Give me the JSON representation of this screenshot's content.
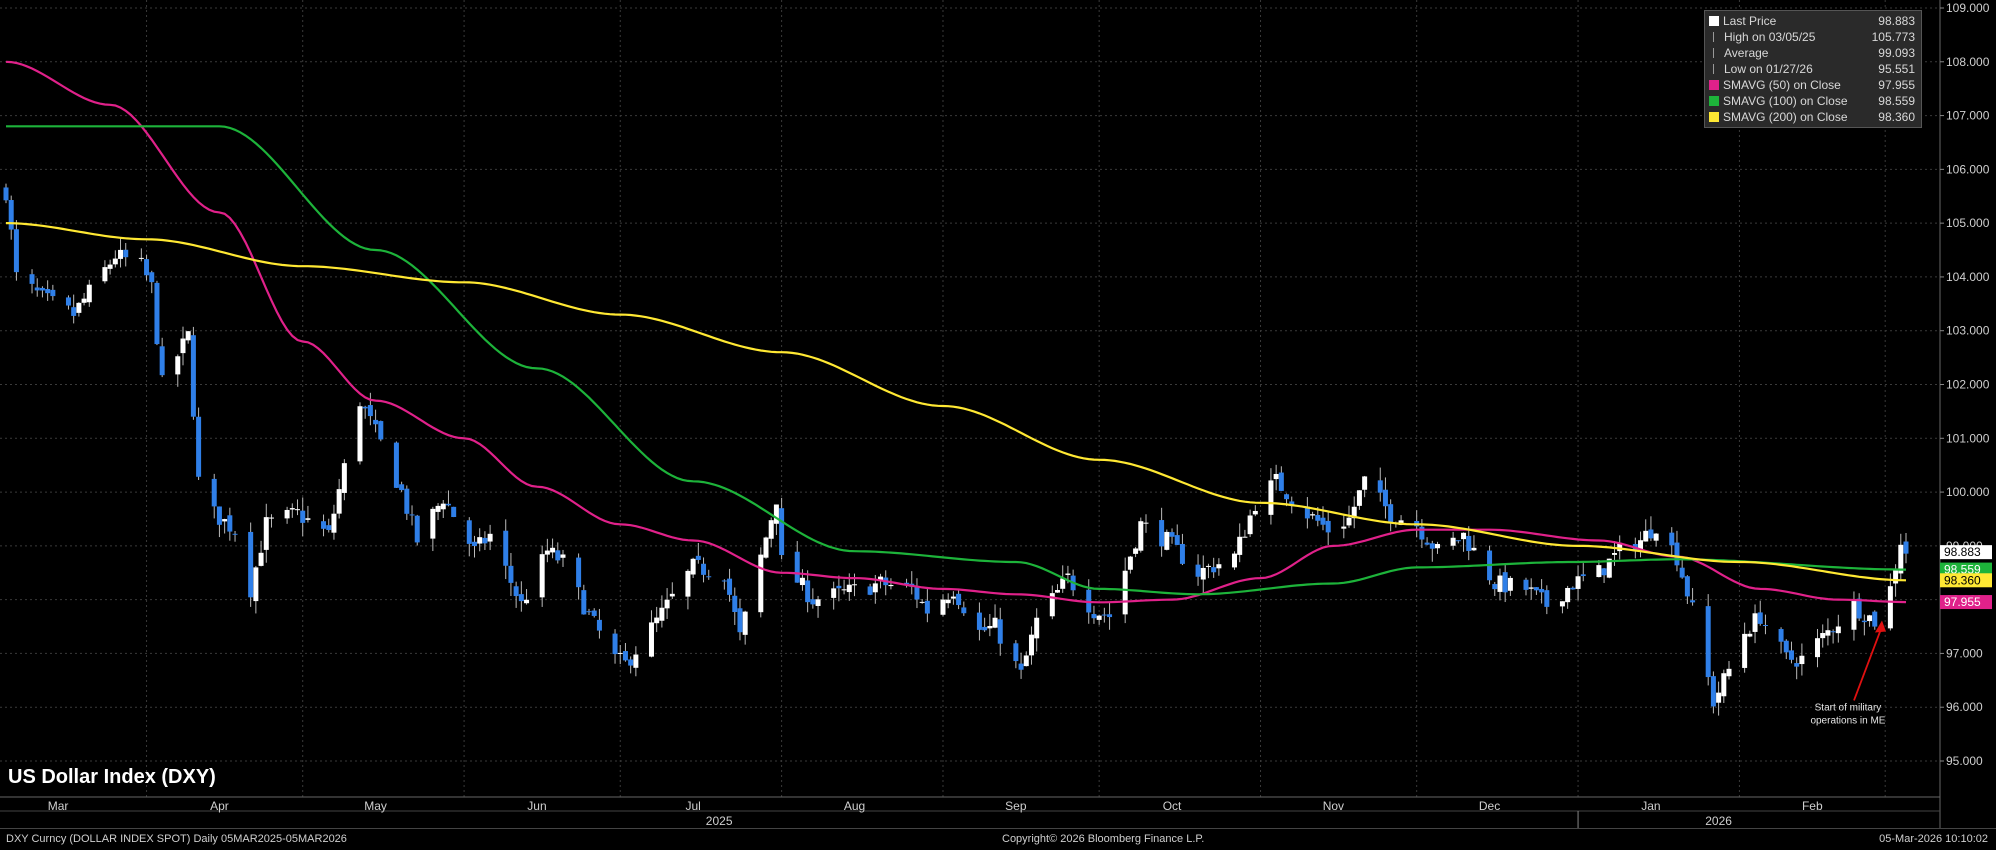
{
  "chart_data": {
    "type": "candlestick",
    "title": "US Dollar Index (DXY)",
    "y_ticks": [
      "95.000",
      "96.000",
      "97.000",
      "98.000",
      "99.000",
      "100.000",
      "101.000",
      "102.000",
      "103.000",
      "104.000",
      "105.000",
      "106.000",
      "107.000",
      "108.000",
      "109.000"
    ],
    "ylim": [
      94.5,
      109.1
    ],
    "x_range": [
      "2025-03-05",
      "2026-03-05"
    ],
    "month_labels": [
      {
        "label": "Mar",
        "date": "2025-03-15"
      },
      {
        "label": "Apr",
        "date": "2025-04-15"
      },
      {
        "label": "May",
        "date": "2025-05-15"
      },
      {
        "label": "Jun",
        "date": "2025-06-15"
      },
      {
        "label": "Jul",
        "date": "2025-07-15"
      },
      {
        "label": "Aug",
        "date": "2025-08-15"
      },
      {
        "label": "Sep",
        "date": "2025-09-15"
      },
      {
        "label": "Oct",
        "date": "2025-10-15"
      },
      {
        "label": "Nov",
        "date": "2025-11-15"
      },
      {
        "label": "Dec",
        "date": "2025-12-15"
      },
      {
        "label": "Jan",
        "date": "2026-01-15"
      },
      {
        "label": "Feb",
        "date": "2026-02-15"
      }
    ],
    "year_labels": [
      {
        "label": "2025",
        "date": "2025-07-20"
      },
      {
        "label": "2026",
        "date": "2026-01-28"
      }
    ],
    "year_divider": "2026-01-01",
    "price_anchors": [
      [
        "2025-03-05",
        105.6
      ],
      [
        "2025-03-07",
        104.0
      ],
      [
        "2025-03-12",
        103.6
      ],
      [
        "2025-03-18",
        103.3
      ],
      [
        "2025-03-26",
        104.4
      ],
      [
        "2025-03-31",
        104.2
      ],
      [
        "2025-04-02",
        103.8
      ],
      [
        "2025-04-04",
        102.0
      ],
      [
        "2025-04-09",
        102.9
      ],
      [
        "2025-04-11",
        100.2
      ],
      [
        "2025-04-14",
        99.6
      ],
      [
        "2025-04-18",
        99.3
      ],
      [
        "2025-04-21",
        98.2
      ],
      [
        "2025-04-24",
        99.4
      ],
      [
        "2025-04-30",
        99.6
      ],
      [
        "2025-05-06",
        99.2
      ],
      [
        "2025-05-12",
        101.7
      ],
      [
        "2025-05-16",
        100.9
      ],
      [
        "2025-05-20",
        100.0
      ],
      [
        "2025-05-23",
        99.1
      ],
      [
        "2025-05-28",
        99.9
      ],
      [
        "2025-06-03",
        98.9
      ],
      [
        "2025-06-06",
        99.2
      ],
      [
        "2025-06-12",
        97.9
      ],
      [
        "2025-06-17",
        98.9
      ],
      [
        "2025-06-20",
        98.7
      ],
      [
        "2025-06-25",
        97.7
      ],
      [
        "2025-06-30",
        96.9
      ],
      [
        "2025-07-02",
        96.8
      ],
      [
        "2025-07-08",
        97.6
      ],
      [
        "2025-07-15",
        98.6
      ],
      [
        "2025-07-21",
        98.5
      ],
      [
        "2025-07-24",
        97.3
      ],
      [
        "2025-07-31",
        99.9
      ],
      [
        "2025-08-01",
        98.7
      ],
      [
        "2025-08-07",
        98.0
      ],
      [
        "2025-08-12",
        98.1
      ],
      [
        "2025-08-20",
        98.3
      ],
      [
        "2025-08-26",
        98.2
      ],
      [
        "2025-08-29",
        97.8
      ],
      [
        "2025-09-03",
        98.2
      ],
      [
        "2025-09-08",
        97.4
      ],
      [
        "2025-09-11",
        97.5
      ],
      [
        "2025-09-16",
        96.6
      ],
      [
        "2025-09-19",
        97.6
      ],
      [
        "2025-09-25",
        98.4
      ],
      [
        "2025-09-30",
        97.8
      ],
      [
        "2025-10-03",
        97.7
      ],
      [
        "2025-10-09",
        99.4
      ],
      [
        "2025-10-14",
        99.1
      ],
      [
        "2025-10-20",
        98.5
      ],
      [
        "2025-10-27",
        98.8
      ],
      [
        "2025-10-31",
        99.8
      ],
      [
        "2025-11-04",
        100.2
      ],
      [
        "2025-11-10",
        99.6
      ],
      [
        "2025-11-14",
        99.3
      ],
      [
        "2025-11-18",
        99.5
      ],
      [
        "2025-11-21",
        100.2
      ],
      [
        "2025-11-26",
        99.6
      ],
      [
        "2025-12-01",
        99.4
      ],
      [
        "2025-12-05",
        98.9
      ],
      [
        "2025-12-10",
        99.2
      ],
      [
        "2025-12-16",
        98.3
      ],
      [
        "2025-12-22",
        98.2
      ],
      [
        "2025-12-26",
        97.9
      ],
      [
        "2025-12-31",
        98.3
      ],
      [
        "2026-01-05",
        98.5
      ],
      [
        "2026-01-09",
        98.9
      ],
      [
        "2026-01-13",
        99.1
      ],
      [
        "2026-01-16",
        99.4
      ],
      [
        "2026-01-20",
        98.8
      ],
      [
        "2026-01-23",
        97.8
      ],
      [
        "2026-01-27",
        96.1
      ],
      [
        "2026-01-30",
        96.7
      ],
      [
        "2026-02-02",
        97.4
      ],
      [
        "2026-02-05",
        97.7
      ],
      [
        "2026-02-10",
        96.9
      ],
      [
        "2026-02-13",
        96.9
      ],
      [
        "2026-02-18",
        97.4
      ],
      [
        "2026-02-23",
        97.9
      ],
      [
        "2026-02-27",
        97.6
      ],
      [
        "2026-03-02",
        98.2
      ],
      [
        "2026-03-04",
        99.1
      ],
      [
        "2026-03-05",
        98.9
      ]
    ],
    "series": [
      {
        "name": "SMAVG (50)  on Close",
        "color": "#e0218a",
        "points": [
          [
            "2025-03-05",
            108.0
          ],
          [
            "2025-03-25",
            107.2
          ],
          [
            "2025-04-15",
            105.2
          ],
          [
            "2025-05-01",
            102.8
          ],
          [
            "2025-05-15",
            101.7
          ],
          [
            "2025-06-01",
            101.0
          ],
          [
            "2025-06-15",
            100.1
          ],
          [
            "2025-07-01",
            99.4
          ],
          [
            "2025-07-15",
            99.1
          ],
          [
            "2025-08-01",
            98.5
          ],
          [
            "2025-08-15",
            98.4
          ],
          [
            "2025-09-01",
            98.2
          ],
          [
            "2025-09-15",
            98.1
          ],
          [
            "2025-10-01",
            97.95
          ],
          [
            "2025-10-15",
            98.0
          ],
          [
            "2025-11-01",
            98.4
          ],
          [
            "2025-11-15",
            99.0
          ],
          [
            "2025-12-01",
            99.3
          ],
          [
            "2025-12-15",
            99.3
          ],
          [
            "2026-01-05",
            99.1
          ],
          [
            "2026-01-20",
            98.8
          ],
          [
            "2026-02-05",
            98.2
          ],
          [
            "2026-02-20",
            98.0
          ],
          [
            "2026-03-05",
            97.955
          ]
        ]
      },
      {
        "name": "SMAVG (100)  on Close",
        "color": "#1db33a",
        "points": [
          [
            "2025-03-05",
            106.8
          ],
          [
            "2025-04-15",
            106.8
          ],
          [
            "2025-05-15",
            104.5
          ],
          [
            "2025-06-15",
            102.3
          ],
          [
            "2025-07-15",
            100.2
          ],
          [
            "2025-08-15",
            98.9
          ],
          [
            "2025-09-15",
            98.7
          ],
          [
            "2025-10-01",
            98.2
          ],
          [
            "2025-10-20",
            98.1
          ],
          [
            "2025-11-15",
            98.3
          ],
          [
            "2025-12-01",
            98.6
          ],
          [
            "2025-12-31",
            98.7
          ],
          [
            "2026-01-20",
            98.75
          ],
          [
            "2026-03-05",
            98.559
          ]
        ]
      },
      {
        "name": "SMAVG (200)  on Close",
        "color": "#ffe833",
        "points": [
          [
            "2025-03-05",
            105.0
          ],
          [
            "2025-04-01",
            104.7
          ],
          [
            "2025-05-01",
            104.2
          ],
          [
            "2025-06-01",
            103.9
          ],
          [
            "2025-07-01",
            103.3
          ],
          [
            "2025-08-01",
            102.6
          ],
          [
            "2025-09-01",
            101.6
          ],
          [
            "2025-10-01",
            100.6
          ],
          [
            "2025-11-01",
            99.8
          ],
          [
            "2025-12-01",
            99.4
          ],
          [
            "2026-01-01",
            99.0
          ],
          [
            "2026-02-01",
            98.7
          ],
          [
            "2026-03-05",
            98.36
          ]
        ]
      }
    ],
    "last_price": {
      "value": "98.883",
      "num": 98.883,
      "color": "#ffffff"
    },
    "axis_tags": [
      {
        "text": "98.883",
        "num": 98.883,
        "bg": "#ffffff",
        "fg": "#000000"
      },
      {
        "text": "98.559",
        "num": 98.559,
        "bg": "#1db33a",
        "fg": "#ffffff"
      },
      {
        "text": "98.360",
        "num": 98.36,
        "bg": "#ffe833",
        "fg": "#000000"
      },
      {
        "text": "97.955",
        "num": 97.955,
        "bg": "#e0218a",
        "fg": "#ffffff"
      }
    ],
    "annotation": {
      "lines": [
        "Start of military",
        "operations in ME"
      ],
      "date": "2026-02-28",
      "target_value": 97.65,
      "text_value": 96.2,
      "color": "#e01010"
    }
  },
  "legend": [
    {
      "name": "Last Price",
      "value": "98.883",
      "color": "#ffffff",
      "icon": "square-swatch"
    },
    {
      "name": "High on 03/05/25",
      "value": "105.773",
      "color": "#aaaaaa",
      "icon": "high-marker"
    },
    {
      "name": "Average",
      "value": "99.093",
      "color": "#aaaaaa",
      "icon": "average-marker"
    },
    {
      "name": "Low on 01/27/26",
      "value": "95.551",
      "color": "#aaaaaa",
      "icon": "low-marker"
    },
    {
      "name": "SMAVG (50)  on Close",
      "value": "97.955",
      "color": "#e0218a",
      "icon": "square-swatch"
    },
    {
      "name": "SMAVG (100)  on Close",
      "value": "98.559",
      "color": "#1db33a",
      "icon": "square-swatch"
    },
    {
      "name": "SMAVG (200)  on Close",
      "value": "98.360",
      "color": "#ffe833",
      "icon": "square-swatch"
    }
  ],
  "footer": {
    "left": "DXY Curncy (DOLLAR INDEX SPOT) Daily 05MAR2025-05MAR2026",
    "center": "Copyright© 2026 Bloomberg Finance L.P.",
    "right": "05-Mar-2026 10:10:02"
  },
  "colors": {
    "up": "#ffffff",
    "down": "#2f7fe8",
    "wick": "#bbbbbb",
    "grid": "#3a3a3a"
  }
}
